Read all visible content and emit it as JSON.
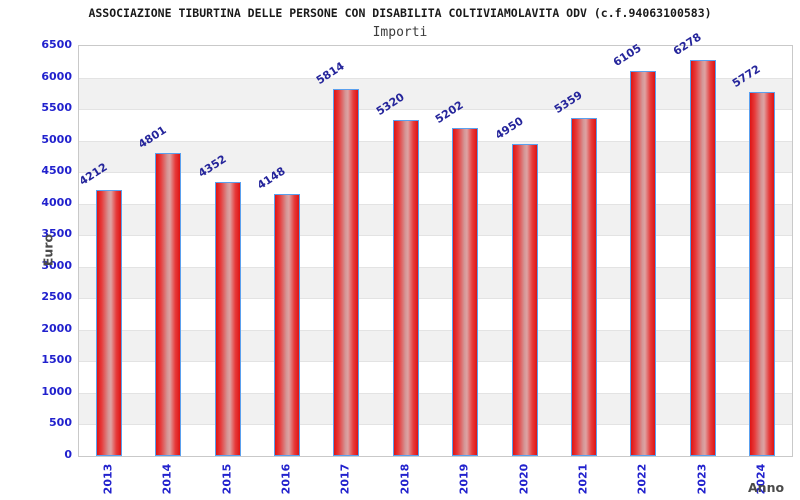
{
  "header": {
    "title": "ASSOCIAZIONE TIBURTINA DELLE PERSONE CON DISABILITA COLTIVIAMOLAVITA ODV (c.f.94063100583)",
    "subtitle": "Importi"
  },
  "chart_data": {
    "type": "bar",
    "title": "ASSOCIAZIONE TIBURTINA DELLE PERSONE CON DISABILITA COLTIVIAMOLAVITA ODV (c.f.94063100583)",
    "subtitle": "Importi",
    "categories": [
      "2013",
      "2014",
      "2015",
      "2016",
      "2017",
      "2018",
      "2019",
      "2020",
      "2021",
      "2022",
      "2023",
      "2024"
    ],
    "values": [
      4212,
      4801,
      4352,
      4148,
      5814,
      5320,
      5202,
      4950,
      5359,
      6105,
      6278,
      5772
    ],
    "xlabel": "Anno",
    "ylabel": "Euro",
    "ylim": [
      0,
      6500
    ],
    "yticks": [
      0,
      500,
      1000,
      1500,
      2000,
      2500,
      3000,
      3500,
      4000,
      4500,
      5000,
      5500,
      6000,
      6500
    ],
    "grid": "alternating horizontal bands every 500, no legend",
    "legend": null,
    "colors": {
      "bar_fill": "#e01414",
      "bar_highlight": "#d49898",
      "bar_border": "#5aa0ee",
      "tick_label": "#2121cd",
      "value_label": "#25259b",
      "axis_title": "#4a4a4a",
      "band_gray": "#f1f1f1",
      "plot_border": "#c9c9c9"
    }
  }
}
